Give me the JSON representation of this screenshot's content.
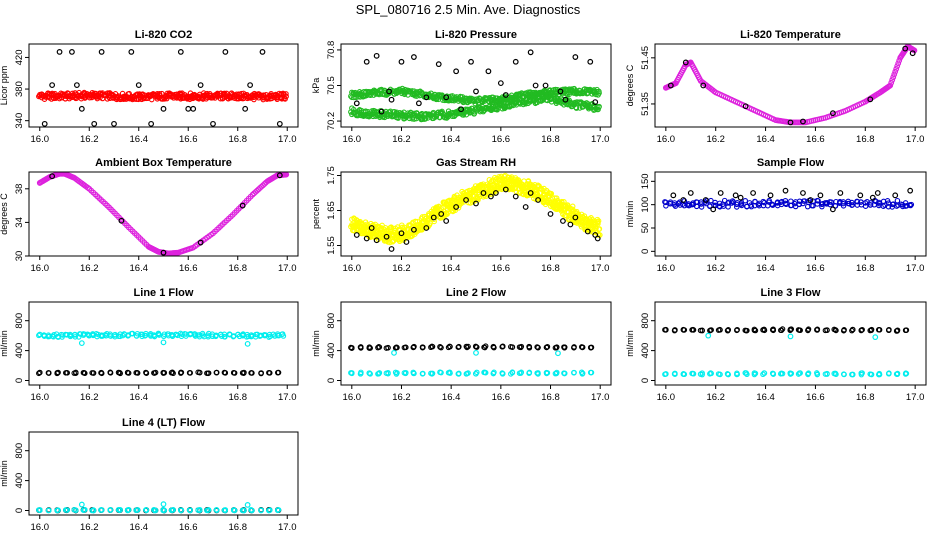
{
  "figure": {
    "title": "SPL_080716  2.5 Min. Ave. Diagnostics"
  },
  "chart_data": [
    {
      "type": "scatter",
      "title": "Li-820 CO2",
      "ylabel": "Licor ppm",
      "xlim": [
        16.0,
        17.0
      ],
      "ylim": [
        332,
        437
      ],
      "xticks": [
        16.0,
        16.2,
        16.4,
        16.6,
        16.8,
        17.0
      ],
      "yticks": [
        340,
        380,
        420
      ],
      "series": [
        {
          "color": "#ff0000",
          "style": "band",
          "x": [
            16.0,
            16.1,
            16.2,
            16.3,
            16.4,
            16.5,
            16.6,
            16.7,
            16.8,
            16.9,
            17.0
          ],
          "y": [
            371,
            371,
            372,
            371,
            370,
            371,
            371,
            371,
            371,
            370,
            371
          ],
          "spread": 4
        },
        {
          "color": "#000000",
          "style": "points",
          "x": [
            16.02,
            16.08,
            16.13,
            16.17,
            16.25,
            16.3,
            16.37,
            16.45,
            16.5,
            16.57,
            16.62,
            16.7,
            16.75,
            16.83,
            16.9,
            16.97,
            16.05,
            16.15,
            16.4,
            16.65,
            16.85,
            16.6,
            16.22
          ],
          "y": [
            336,
            427,
            427,
            355,
            427,
            336,
            427,
            336,
            355,
            427,
            355,
            336,
            427,
            355,
            427,
            336,
            385,
            385,
            385,
            385,
            385,
            355,
            336
          ]
        }
      ]
    },
    {
      "type": "scatter",
      "title": "Li-820 Pressure",
      "ylabel": "kPa",
      "xlim": [
        16.0,
        17.0
      ],
      "ylim": [
        70.15,
        70.85
      ],
      "xticks": [
        16.0,
        16.2,
        16.4,
        16.6,
        16.8,
        17.0
      ],
      "yticks": [
        70.2,
        70.5,
        70.8
      ],
      "series": [
        {
          "color": "#22bb22",
          "style": "band",
          "x": [
            16.0,
            16.1,
            16.2,
            16.3,
            16.4,
            16.5,
            16.6,
            16.7,
            16.8,
            16.9,
            17.0
          ],
          "y": [
            70.28,
            70.26,
            70.25,
            70.24,
            70.26,
            70.29,
            70.33,
            70.37,
            70.39,
            70.34,
            70.31
          ],
          "spread": 0.03
        },
        {
          "color": "#22bb22",
          "style": "band",
          "x": [
            16.0,
            16.1,
            16.2,
            16.3,
            16.4,
            16.5,
            16.6,
            16.7,
            16.8,
            16.9,
            17.0
          ],
          "y": [
            70.42,
            70.44,
            70.45,
            70.42,
            70.39,
            70.37,
            70.38,
            70.42,
            70.44,
            70.45,
            70.44
          ],
          "spread": 0.025
        },
        {
          "color": "#000000",
          "style": "points",
          "x": [
            16.02,
            16.06,
            16.1,
            16.15,
            16.2,
            16.25,
            16.3,
            16.35,
            16.42,
            16.48,
            16.55,
            16.6,
            16.66,
            16.72,
            16.78,
            16.84,
            16.9,
            16.96,
            16.16,
            16.27,
            16.38,
            16.5,
            16.62,
            16.74,
            16.86,
            16.98,
            16.12,
            16.44
          ],
          "y": [
            70.35,
            70.7,
            70.75,
            70.45,
            70.7,
            70.74,
            70.4,
            70.68,
            70.62,
            70.7,
            70.62,
            70.52,
            70.7,
            70.78,
            70.5,
            70.45,
            70.74,
            70.7,
            70.38,
            70.35,
            70.4,
            70.45,
            70.42,
            70.5,
            70.38,
            70.36,
            70.28,
            70.3
          ]
        }
      ]
    },
    {
      "type": "scatter",
      "title": "Li-820 Temperature",
      "ylabel": "degrees C",
      "xlim": [
        16.0,
        17.0
      ],
      "ylim": [
        51.3,
        51.48
      ],
      "xticks": [
        16.0,
        16.2,
        16.4,
        16.6,
        16.8,
        17.0
      ],
      "yticks": [
        51.35,
        51.45
      ],
      "series": [
        {
          "color": "#dd22dd",
          "style": "line",
          "x": [
            16.0,
            16.04,
            16.08,
            16.1,
            16.14,
            16.2,
            16.28,
            16.36,
            16.44,
            16.5,
            16.56,
            16.64,
            16.72,
            16.8,
            16.86,
            16.9,
            16.94,
            16.97,
            17.0
          ],
          "y": [
            51.385,
            51.395,
            51.435,
            51.44,
            51.4,
            51.375,
            51.355,
            51.335,
            51.315,
            51.31,
            51.31,
            51.32,
            51.335,
            51.355,
            51.375,
            51.39,
            51.45,
            51.475,
            51.465
          ]
        },
        {
          "color": "#000000",
          "style": "points",
          "x": [
            16.02,
            16.08,
            16.15,
            16.32,
            16.5,
            16.55,
            16.67,
            16.82,
            16.96,
            16.99
          ],
          "y": [
            51.39,
            51.44,
            51.39,
            51.345,
            51.31,
            51.312,
            51.33,
            51.36,
            51.47,
            51.46
          ]
        }
      ]
    },
    {
      "type": "scatter",
      "title": "Ambient Box Temperature",
      "ylabel": "degrees C",
      "xlim": [
        16.0,
        17.0
      ],
      "ylim": [
        30,
        40
      ],
      "xticks": [
        16.0,
        16.2,
        16.4,
        16.6,
        16.8,
        17.0
      ],
      "yticks": [
        30,
        34,
        38
      ],
      "series": [
        {
          "color": "#dd22dd",
          "style": "line",
          "x": [
            16.0,
            16.04,
            16.08,
            16.1,
            16.14,
            16.2,
            16.28,
            16.36,
            16.44,
            16.48,
            16.52,
            16.56,
            16.62,
            16.7,
            16.78,
            16.86,
            16.92,
            16.96,
            17.0
          ],
          "y": [
            38.7,
            39.4,
            39.8,
            39.8,
            39.3,
            38.0,
            35.8,
            33.4,
            31.1,
            30.5,
            30.3,
            30.4,
            31.0,
            32.7,
            34.9,
            37.3,
            38.9,
            39.6,
            39.7
          ]
        },
        {
          "color": "#000000",
          "style": "points",
          "x": [
            16.05,
            16.33,
            16.5,
            16.65,
            16.82,
            16.97
          ],
          "y": [
            39.5,
            34.2,
            30.4,
            31.6,
            36.0,
            39.6
          ]
        }
      ]
    },
    {
      "type": "scatter",
      "title": "Gas Stream RH",
      "ylabel": "percent",
      "xlim": [
        16.0,
        17.0
      ],
      "ylim": [
        1.52,
        1.76
      ],
      "xticks": [
        16.0,
        16.2,
        16.4,
        16.6,
        16.8,
        17.0
      ],
      "yticks": [
        1.55,
        1.65,
        1.75
      ],
      "series": [
        {
          "color": "#ffff00",
          "style": "band",
          "x": [
            16.0,
            16.05,
            16.1,
            16.15,
            16.2,
            16.25,
            16.3,
            16.35,
            16.4,
            16.45,
            16.5,
            16.55,
            16.6,
            16.65,
            16.7,
            16.75,
            16.8,
            16.85,
            16.9,
            16.95,
            17.0
          ],
          "y": [
            1.61,
            1.6,
            1.59,
            1.58,
            1.585,
            1.6,
            1.62,
            1.645,
            1.665,
            1.685,
            1.7,
            1.715,
            1.73,
            1.725,
            1.715,
            1.7,
            1.68,
            1.655,
            1.635,
            1.61,
            1.6
          ],
          "spread": 0.022
        },
        {
          "color": "#000000",
          "style": "points",
          "x": [
            16.02,
            16.06,
            16.1,
            16.14,
            16.16,
            16.2,
            16.25,
            16.3,
            16.33,
            16.38,
            16.42,
            16.46,
            16.5,
            16.53,
            16.58,
            16.62,
            16.66,
            16.7,
            16.75,
            16.8,
            16.85,
            16.9,
            16.95,
            16.99,
            16.08,
            16.22,
            16.36,
            16.56,
            16.72,
            16.88,
            16.98
          ],
          "y": [
            1.58,
            1.57,
            1.565,
            1.575,
            1.54,
            1.585,
            1.595,
            1.6,
            1.63,
            1.62,
            1.66,
            1.68,
            1.67,
            1.7,
            1.7,
            1.71,
            1.69,
            1.66,
            1.68,
            1.64,
            1.62,
            1.63,
            1.59,
            1.57,
            1.6,
            1.56,
            1.64,
            1.69,
            1.7,
            1.61,
            1.58
          ]
        }
      ]
    },
    {
      "type": "scatter",
      "title": "Sample Flow",
      "ylabel": "ml/min",
      "xlim": [
        16.0,
        17.0
      ],
      "ylim": [
        -10,
        170
      ],
      "xticks": [
        16.0,
        16.2,
        16.4,
        16.6,
        16.8,
        17.0
      ],
      "yticks": [
        0,
        50,
        100,
        150
      ],
      "series": [
        {
          "color": "#0000cc",
          "style": "band",
          "x": [
            16.0,
            16.25,
            16.5,
            16.75,
            17.0
          ],
          "y": [
            102,
            102,
            102,
            102,
            102
          ],
          "spread": 7
        },
        {
          "color": "#000000",
          "style": "points",
          "x": [
            16.03,
            16.1,
            16.16,
            16.22,
            16.28,
            16.35,
            16.42,
            16.48,
            16.55,
            16.62,
            16.7,
            16.78,
            16.85,
            16.92,
            16.98,
            16.07,
            16.3,
            16.58,
            16.83,
            16.19,
            16.67
          ],
          "y": [
            120,
            125,
            110,
            125,
            120,
            125,
            120,
            130,
            125,
            120,
            125,
            120,
            125,
            120,
            130,
            110,
            115,
            110,
            115,
            90,
            90
          ]
        }
      ]
    },
    {
      "type": "scatter",
      "title": "Line 1 Flow",
      "ylabel": "ml/min",
      "xlim": [
        16.0,
        17.0
      ],
      "ylim": [
        -60,
        1050
      ],
      "xticks": [
        16.0,
        16.2,
        16.4,
        16.6,
        16.8,
        17.0
      ],
      "yticks": [
        0,
        400,
        800
      ],
      "series": [
        {
          "color": "#00eeee",
          "style": "band",
          "x": [
            16.0,
            16.25,
            16.5,
            16.75,
            17.0
          ],
          "y": [
            600,
            605,
            610,
            605,
            600
          ],
          "spread": 22
        },
        {
          "color": "#00eeee",
          "style": "points",
          "x": [
            16.17,
            16.5,
            16.84
          ],
          "y": [
            500,
            510,
            490
          ]
        },
        {
          "color": "#000000",
          "style": "band",
          "x": [
            16.0,
            16.5,
            17.0
          ],
          "y": [
            100,
            105,
            100
          ],
          "spread": 8
        }
      ]
    },
    {
      "type": "scatter",
      "title": "Line 2 Flow",
      "ylabel": "ml/min",
      "xlim": [
        16.0,
        17.0
      ],
      "ylim": [
        -60,
        1050
      ],
      "xticks": [
        16.0,
        16.2,
        16.4,
        16.6,
        16.8,
        17.0
      ],
      "yticks": [
        0,
        400,
        800
      ],
      "series": [
        {
          "color": "#00eeee",
          "style": "band",
          "x": [
            16.0,
            16.5,
            17.0
          ],
          "y": [
            100,
            100,
            100
          ],
          "spread": 14
        },
        {
          "color": "#000000",
          "style": "band",
          "x": [
            16.0,
            16.5,
            17.0
          ],
          "y": [
            440,
            450,
            445
          ],
          "spread": 10
        },
        {
          "color": "#00eeee",
          "style": "points",
          "x": [
            16.17,
            16.5,
            16.83
          ],
          "y": [
            370,
            370,
            365
          ]
        }
      ]
    },
    {
      "type": "scatter",
      "title": "Line 3 Flow",
      "ylabel": "ml/min",
      "xlim": [
        16.0,
        17.0
      ],
      "ylim": [
        -60,
        1050
      ],
      "xticks": [
        16.0,
        16.2,
        16.4,
        16.6,
        16.8,
        17.0
      ],
      "yticks": [
        0,
        400,
        800
      ],
      "series": [
        {
          "color": "#00eeee",
          "style": "band",
          "x": [
            16.0,
            16.5,
            17.0
          ],
          "y": [
            90,
            90,
            90
          ],
          "spread": 12
        },
        {
          "color": "#000000",
          "style": "band",
          "x": [
            16.0,
            16.5,
            17.0
          ],
          "y": [
            670,
            680,
            670
          ],
          "spread": 10
        },
        {
          "color": "#00eeee",
          "style": "points",
          "x": [
            16.17,
            16.5,
            16.84
          ],
          "y": [
            600,
            590,
            580
          ]
        }
      ]
    },
    {
      "type": "scatter",
      "title": "Line 4 (LT) Flow",
      "ylabel": "ml/min",
      "xlim": [
        16.0,
        17.0
      ],
      "ylim": [
        -60,
        1050
      ],
      "xticks": [
        16.0,
        16.2,
        16.4,
        16.6,
        16.8,
        17.0
      ],
      "yticks": [
        0,
        400,
        800
      ],
      "series": [
        {
          "color": "#000000",
          "style": "band",
          "x": [
            16.0,
            16.5,
            17.0
          ],
          "y": [
            5,
            5,
            5
          ],
          "spread": 6
        },
        {
          "color": "#00eeee",
          "style": "band",
          "x": [
            16.0,
            16.5,
            17.0
          ],
          "y": [
            5,
            5,
            5
          ],
          "spread": 6
        },
        {
          "color": "#00eeee",
          "style": "points",
          "x": [
            16.17,
            16.5,
            16.84
          ],
          "y": [
            80,
            85,
            75
          ]
        }
      ]
    }
  ]
}
